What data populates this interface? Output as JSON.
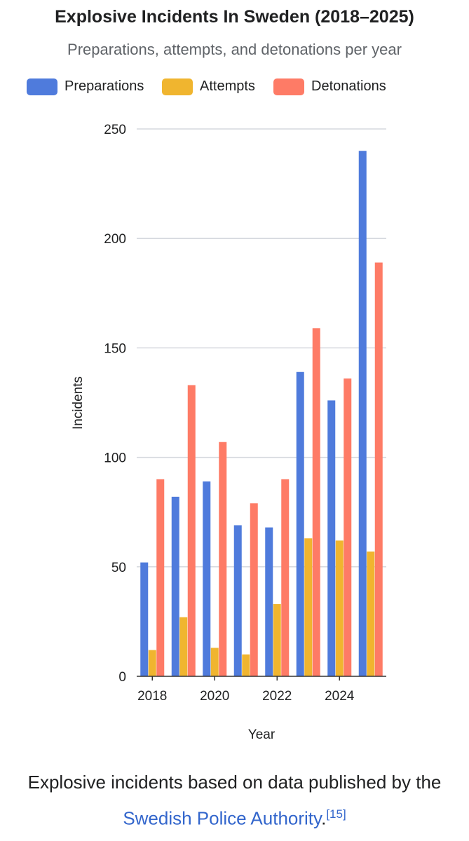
{
  "title": "Explosive Incidents In Sweden (2018–2025)",
  "subtitle": "Preparations, attempts, and detonations per year",
  "legend": [
    {
      "label": "Preparations",
      "color": "#4f7bdc"
    },
    {
      "label": "Attempts",
      "color": "#f0b52f"
    },
    {
      "label": "Detonations",
      "color": "#fe7b66"
    }
  ],
  "chart_data": {
    "type": "bar",
    "title": "Explosive Incidents In Sweden (2018–2025)",
    "subtitle": "Preparations, attempts, and detonations per year",
    "xlabel": "Year",
    "ylabel": "Incidents",
    "categories": [
      2018,
      2019,
      2020,
      2021,
      2022,
      2023,
      2024,
      2025
    ],
    "x_tick_labels": [
      "2018",
      "2020",
      "2022",
      "2024"
    ],
    "y_ticks": [
      0,
      50,
      100,
      150,
      200,
      250
    ],
    "ylim": [
      0,
      250
    ],
    "grid": true,
    "legend_position": "top",
    "series": [
      {
        "name": "Preparations",
        "color": "#4f7bdc",
        "values": [
          52,
          82,
          89,
          69,
          68,
          139,
          126,
          240
        ]
      },
      {
        "name": "Attempts",
        "color": "#f0b52f",
        "values": [
          12,
          27,
          13,
          10,
          33,
          63,
          62,
          57
        ]
      },
      {
        "name": "Detonations",
        "color": "#fe7b66",
        "values": [
          90,
          133,
          107,
          79,
          90,
          159,
          136,
          189
        ]
      }
    ]
  },
  "caption": {
    "text_before": "Explosive incidents based on data published by the ",
    "link_text": "Swedish Police Authority",
    "text_after": ".",
    "reference": "[15]"
  }
}
